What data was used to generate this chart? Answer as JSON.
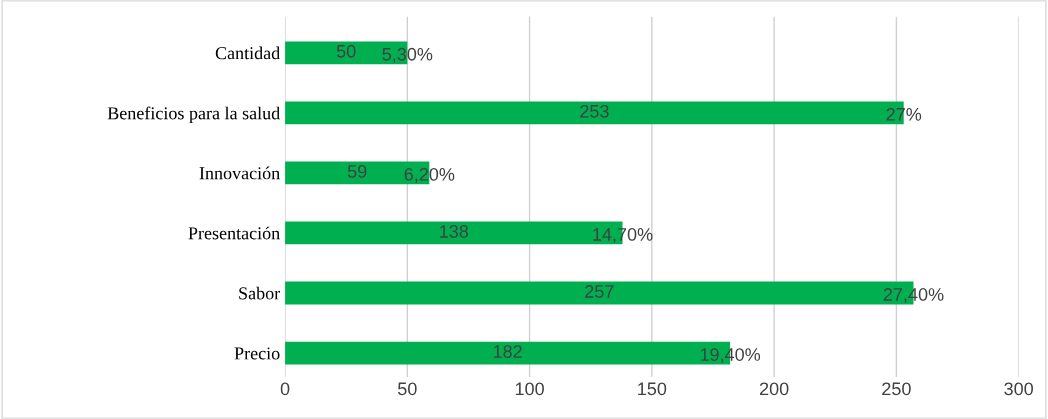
{
  "chart_data": {
    "type": "bar",
    "orientation": "horizontal",
    "categories": [
      "Cantidad",
      "Beneficios para la salud",
      "Innovación",
      "Presentación",
      "Sabor",
      "Precio"
    ],
    "values": [
      50,
      253,
      59,
      138,
      257,
      182
    ],
    "color": "#00b050",
    "data_labels": true,
    "annotations": [
      {
        "text": "5,30%",
        "x": 50,
        "y": "Cantidad"
      },
      {
        "text": "27%",
        "x": 253,
        "y": "Beneficios para la salud"
      },
      {
        "text": "6,20%",
        "x": 59,
        "y": "Innovación"
      },
      {
        "text": "14,70%",
        "x": 138,
        "y": "Presentación"
      },
      {
        "text": "27,40%",
        "x": 257,
        "y": "Sabor"
      },
      {
        "text": "19,40%",
        "x": 182,
        "y": "Precio"
      }
    ],
    "xlim": [
      0,
      300
    ],
    "xticks": [
      0,
      50,
      100,
      150,
      200,
      250,
      300
    ],
    "grid": "x",
    "legend": false
  }
}
